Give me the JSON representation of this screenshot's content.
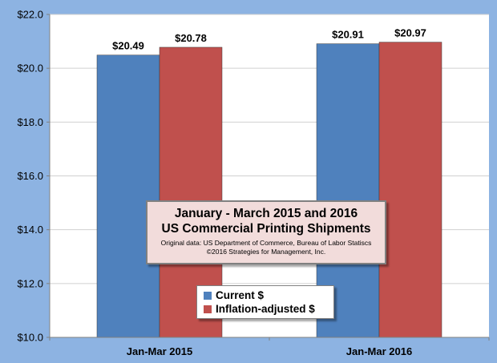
{
  "chart_data": {
    "type": "bar",
    "title": "January - March 2015 and 2016",
    "subtitle": "US Commercial Printing Shipments",
    "notes": [
      "Original data: US Department of Commerce, Bureau of Labor Statiscs",
      "©2016 Strategies for Management, Inc."
    ],
    "categories": [
      "Jan-Mar 2015",
      "Jan-Mar 2016"
    ],
    "series": [
      {
        "name": "Current $",
        "color": "#4f81bd",
        "values": [
          20.49,
          20.91
        ],
        "labels": [
          "$20.49",
          "$20.91"
        ]
      },
      {
        "name": "Inflation-adjusted $",
        "color": "#c0504d",
        "values": [
          20.78,
          20.97
        ],
        "labels": [
          "$20.78",
          "$20.97"
        ]
      }
    ],
    "ylim": [
      10.0,
      22.0
    ],
    "yticks": [
      10.0,
      12.0,
      14.0,
      16.0,
      18.0,
      20.0,
      22.0
    ],
    "ytick_labels": [
      "$10.0",
      "$12.0",
      "$14.0",
      "$16.0",
      "$18.0",
      "$20.0",
      "$22.0"
    ],
    "xlabel": "",
    "ylabel": "",
    "grid": true,
    "legend": "inside-bottom-center"
  }
}
